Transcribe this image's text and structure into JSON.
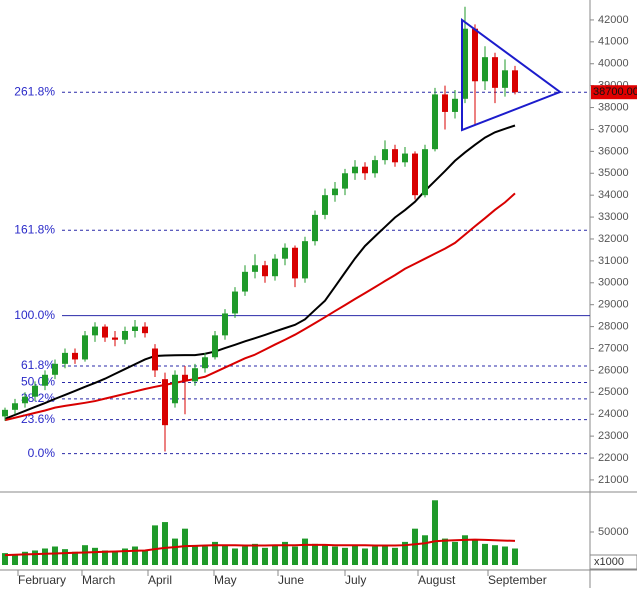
{
  "chart_data": {
    "type": "candlestick",
    "xlim": [
      -0.5,
      58.5
    ],
    "xticks": [
      {
        "value": 1.3,
        "label": "February"
      },
      {
        "value": 7.7,
        "label": "March"
      },
      {
        "value": 14.3,
        "label": "April"
      },
      {
        "value": 20.9,
        "label": "May"
      },
      {
        "value": 27.3,
        "label": "June"
      },
      {
        "value": 34,
        "label": "July"
      },
      {
        "value": 41.3,
        "label": "August"
      },
      {
        "value": 48.3,
        "label": "September"
      }
    ],
    "ylim": [
      20540,
      42910
    ],
    "yticks": [
      21000,
      22000,
      23000,
      24000,
      25000,
      26000,
      27000,
      28000,
      29000,
      30000,
      31000,
      32000,
      33000,
      34000,
      35000,
      36000,
      37000,
      38000,
      39000,
      40000,
      41000,
      42000
    ],
    "up_color": "#1f9a2a",
    "down_color": "#d80000",
    "ohlc": [
      [
        23900,
        24300,
        23700,
        24200
      ],
      [
        24200,
        24700,
        24000,
        24500
      ],
      [
        24500,
        25000,
        24300,
        24800
      ],
      [
        24800,
        25500,
        24600,
        25300
      ],
      [
        25300,
        26000,
        25100,
        25800
      ],
      [
        25800,
        26500,
        25600,
        26300
      ],
      [
        26300,
        27000,
        26100,
        26800
      ],
      [
        26800,
        27000,
        26300,
        26500
      ],
      [
        26500,
        27800,
        26400,
        27600
      ],
      [
        27600,
        28200,
        27300,
        28000
      ],
      [
        28000,
        28100,
        27300,
        27500
      ],
      [
        27500,
        27800,
        27100,
        27400
      ],
      [
        27400,
        28000,
        27200,
        27800
      ],
      [
        27800,
        28300,
        27500,
        28000
      ],
      [
        28000,
        28200,
        27500,
        27700
      ],
      [
        27000,
        27200,
        25700,
        26000
      ],
      [
        25600,
        25900,
        22300,
        23500
      ],
      [
        24500,
        26000,
        24300,
        25800
      ],
      [
        25800,
        26200,
        24000,
        25500
      ],
      [
        25500,
        26300,
        25300,
        26100
      ],
      [
        26100,
        26800,
        25900,
        26600
      ],
      [
        26600,
        27800,
        26500,
        27600
      ],
      [
        27600,
        28800,
        27400,
        28600
      ],
      [
        28600,
        29800,
        28400,
        29600
      ],
      [
        29600,
        30800,
        29400,
        30500
      ],
      [
        30500,
        31300,
        30200,
        30800
      ],
      [
        30800,
        31000,
        30000,
        30300
      ],
      [
        30300,
        31300,
        30100,
        31100
      ],
      [
        31100,
        31800,
        30800,
        31600
      ],
      [
        31600,
        31700,
        29800,
        30200
      ],
      [
        30200,
        32100,
        30000,
        31900
      ],
      [
        31900,
        33300,
        31700,
        33100
      ],
      [
        33100,
        34300,
        32900,
        34000
      ],
      [
        34000,
        34600,
        33700,
        34300
      ],
      [
        34300,
        35200,
        34000,
        35000
      ],
      [
        35000,
        35600,
        34700,
        35300
      ],
      [
        35300,
        35500,
        34700,
        35000
      ],
      [
        35000,
        35800,
        34800,
        35600
      ],
      [
        35600,
        36500,
        35400,
        36100
      ],
      [
        36100,
        36300,
        35300,
        35500
      ],
      [
        35500,
        36200,
        35300,
        35900
      ],
      [
        35900,
        36000,
        33800,
        34000
      ],
      [
        34000,
        36300,
        33900,
        36100
      ],
      [
        36100,
        38900,
        36000,
        38600
      ],
      [
        38600,
        39000,
        37000,
        37800
      ],
      [
        37800,
        38800,
        37500,
        38400
      ],
      [
        38400,
        42600,
        38200,
        41600
      ],
      [
        41600,
        41800,
        37200,
        39200
      ],
      [
        39200,
        40800,
        38800,
        40300
      ],
      [
        40300,
        40500,
        38200,
        38900
      ],
      [
        38900,
        40200,
        38500,
        39700
      ],
      [
        39700,
        39900,
        38600,
        38700
      ]
    ],
    "moving_averages": [
      {
        "color": "#000000",
        "values": [
          23790,
          23970,
          24150,
          24330,
          24510,
          24700,
          24880,
          25060,
          25250,
          25430,
          25620,
          25840,
          26060,
          26280,
          26500,
          26660,
          26680,
          26690,
          26700,
          26700,
          26760,
          26860,
          27020,
          27170,
          27330,
          27470,
          27620,
          27780,
          27930,
          28080,
          28330,
          28760,
          29180,
          29820,
          30470,
          31110,
          31680,
          32120,
          32550,
          32980,
          33320,
          33700,
          34200,
          34650,
          35100,
          35570,
          35950,
          36300,
          36630,
          36870,
          37030,
          37180
        ]
      },
      {
        "color": "#d80000",
        "values": [
          23730,
          23840,
          23950,
          24060,
          24170,
          24300,
          24380,
          24450,
          24520,
          24600,
          24710,
          24820,
          24930,
          25040,
          25150,
          25250,
          25340,
          25430,
          25520,
          25610,
          25710,
          25920,
          26130,
          26340,
          26550,
          26720,
          26950,
          27180,
          27400,
          27630,
          27890,
          28160,
          28430,
          28710,
          28980,
          29260,
          29530,
          29800,
          30080,
          30350,
          30640,
          30870,
          31100,
          31330,
          31560,
          31820,
          32200,
          32580,
          32950,
          33330,
          33670,
          34080
        ]
      }
    ],
    "fib_levels": [
      {
        "name": "0.0%",
        "price": 22200
      },
      {
        "name": "23.6%",
        "price": 23750
      },
      {
        "name": "38.2%",
        "price": 24700
      },
      {
        "name": "50.0%",
        "price": 25450
      },
      {
        "name": "61.8%",
        "price": 26200
      },
      {
        "name": "100.0%",
        "price": 28500,
        "solid": true
      },
      {
        "name": "161.8%",
        "price": 32400
      },
      {
        "name": "261.8%",
        "price": 38700
      }
    ],
    "last_price": {
      "value": 38700,
      "label": "38700.00"
    },
    "volume": {
      "color": "#1f9a2a",
      "ma_color": "#d80000",
      "unit": "x1000",
      "ylim": [
        0,
        106000
      ],
      "yticks": [
        50000
      ],
      "values": [
        18000,
        15000,
        20000,
        22000,
        25000,
        28000,
        24000,
        20000,
        30000,
        26000,
        22000,
        20000,
        25000,
        28000,
        22000,
        60000,
        65000,
        40000,
        55000,
        30000,
        28000,
        35000,
        30000,
        25000,
        28000,
        32000,
        26000,
        30000,
        35000,
        28000,
        40000,
        32000,
        30000,
        28000,
        26000,
        30000,
        25000,
        28000,
        30000,
        26000,
        35000,
        55000,
        45000,
        98000,
        40000,
        35000,
        45000,
        38000,
        32000,
        30000,
        28000,
        25000
      ],
      "ma": [
        15000,
        15500,
        16000,
        16500,
        17000,
        17500,
        18000,
        18500,
        19000,
        19500,
        20000,
        20500,
        21000,
        21500,
        22000,
        24000,
        26000,
        27000,
        28500,
        29000,
        29500,
        30000,
        30000,
        30000,
        29500,
        29500,
        29500,
        30000,
        30000,
        30000,
        30500,
        30500,
        30500,
        30000,
        30000,
        30000,
        30000,
        29500,
        29500,
        29500,
        30000,
        31500,
        33000,
        36000,
        37000,
        37500,
        38000,
        38500,
        38000,
        37500,
        37000,
        36500
      ]
    }
  }
}
